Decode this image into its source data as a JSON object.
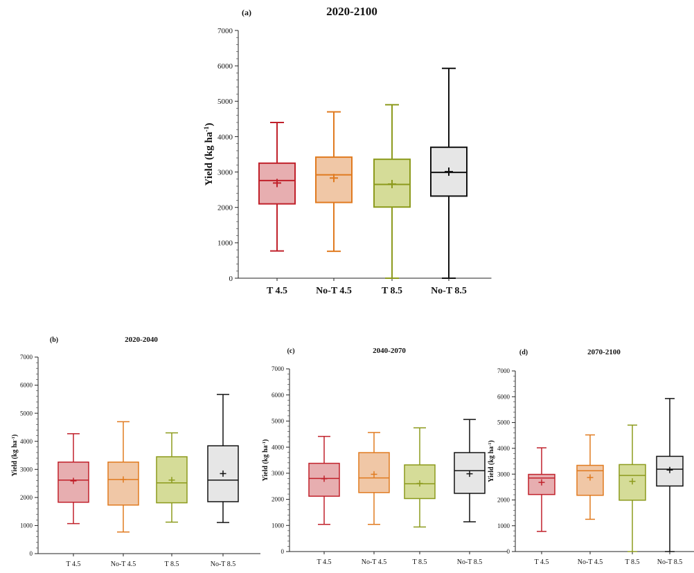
{
  "figure": {
    "colors": {
      "T 4.5": {
        "stroke": "#c0202a",
        "fill": "#e7aeb0"
      },
      "No-T 4.5": {
        "stroke": "#e07a1f",
        "fill": "#f0c7a6"
      },
      "T 8.5": {
        "stroke": "#8c9a1c",
        "fill": "#d5dc98"
      },
      "No-T 8.5": {
        "stroke": "#111111",
        "fill": "#e6e6e6"
      }
    }
  },
  "chart_data": [
    {
      "panel": "(a)",
      "title": "2020-2100",
      "type": "box",
      "ylabel": "Yield (kg ha",
      "ylabel_sup": "-1",
      "ylabel_end": ")",
      "ylim": [
        0,
        7000
      ],
      "yticks": [
        0,
        1000,
        2000,
        3000,
        4000,
        5000,
        6000,
        7000
      ],
      "categories": [
        "T 4.5",
        "No-T 4.5",
        "T 8.5",
        "No-T 8.5"
      ],
      "boxes": [
        {
          "min": 770,
          "q1": 2100,
          "median": 2760,
          "q3": 3250,
          "max": 4400,
          "mean": 2690
        },
        {
          "min": 760,
          "q1": 2140,
          "median": 2920,
          "q3": 3420,
          "max": 4700,
          "mean": 2830
        },
        {
          "min": 0,
          "q1": 2010,
          "median": 2650,
          "q3": 3360,
          "max": 4900,
          "mean": 2660
        },
        {
          "min": 0,
          "q1": 2320,
          "median": 2990,
          "q3": 3700,
          "max": 5930,
          "mean": 3010
        }
      ]
    },
    {
      "panel": "(b)",
      "title": "2020-2040",
      "type": "box",
      "ylabel": "Yield (kg ha",
      "ylabel_sup": "-1",
      "ylabel_end": ")",
      "ylim": [
        0,
        7000
      ],
      "yticks": [
        0,
        1000,
        2000,
        3000,
        4000,
        5000,
        6000,
        7000
      ],
      "categories": [
        "T 4.5",
        "No-T 4.5",
        "T 8.5",
        "No-T 8.5"
      ],
      "boxes": [
        {
          "min": 1070,
          "q1": 1830,
          "median": 2620,
          "q3": 3260,
          "max": 4270,
          "mean": 2590
        },
        {
          "min": 770,
          "q1": 1730,
          "median": 2640,
          "q3": 3260,
          "max": 4700,
          "mean": 2640
        },
        {
          "min": 1120,
          "q1": 1810,
          "median": 2520,
          "q3": 3450,
          "max": 4300,
          "mean": 2620
        },
        {
          "min": 1110,
          "q1": 1850,
          "median": 2620,
          "q3": 3840,
          "max": 5670,
          "mean": 2850
        }
      ]
    },
    {
      "panel": "(c)",
      "title": "2040-2070",
      "type": "box",
      "ylabel": "Yield (kg ha",
      "ylabel_sup": "-1",
      "ylabel_end": ")",
      "ylim": [
        0,
        7000
      ],
      "yticks": [
        0,
        1000,
        2000,
        3000,
        4000,
        5000,
        6000,
        7000
      ],
      "categories": [
        "T 4.5",
        "No-T 4.5",
        "T 8.5",
        "No-T 8.5"
      ],
      "boxes": [
        {
          "min": 1040,
          "q1": 2120,
          "median": 2800,
          "q3": 3380,
          "max": 4410,
          "mean": 2790
        },
        {
          "min": 1040,
          "q1": 2260,
          "median": 2820,
          "q3": 3790,
          "max": 4560,
          "mean": 2960
        },
        {
          "min": 940,
          "q1": 2030,
          "median": 2600,
          "q3": 3320,
          "max": 4740,
          "mean": 2610
        },
        {
          "min": 1140,
          "q1": 2230,
          "median": 3100,
          "q3": 3790,
          "max": 5060,
          "mean": 2980
        }
      ]
    },
    {
      "panel": "(d)",
      "title": "2070-2100",
      "type": "box",
      "ylabel": "Yield (kg ha",
      "ylabel_sup": "-1",
      "ylabel_end": ")",
      "ylim": [
        0,
        7000
      ],
      "yticks": [
        0,
        1000,
        2000,
        3000,
        4000,
        5000,
        6000,
        7000
      ],
      "categories": [
        "T 4.5",
        "No-T 4.5",
        "T 8.5",
        "No-T 8.5"
      ],
      "boxes": [
        {
          "min": 780,
          "q1": 2210,
          "median": 2850,
          "q3": 2990,
          "max": 4020,
          "mean": 2680
        },
        {
          "min": 1250,
          "q1": 2180,
          "median": 3130,
          "q3": 3340,
          "max": 4520,
          "mean": 2870
        },
        {
          "min": 0,
          "q1": 1990,
          "median": 2950,
          "q3": 3370,
          "max": 4900,
          "mean": 2720
        },
        {
          "min": 0,
          "q1": 2540,
          "median": 3190,
          "q3": 3690,
          "max": 5930,
          "mean": 3160
        }
      ]
    }
  ]
}
